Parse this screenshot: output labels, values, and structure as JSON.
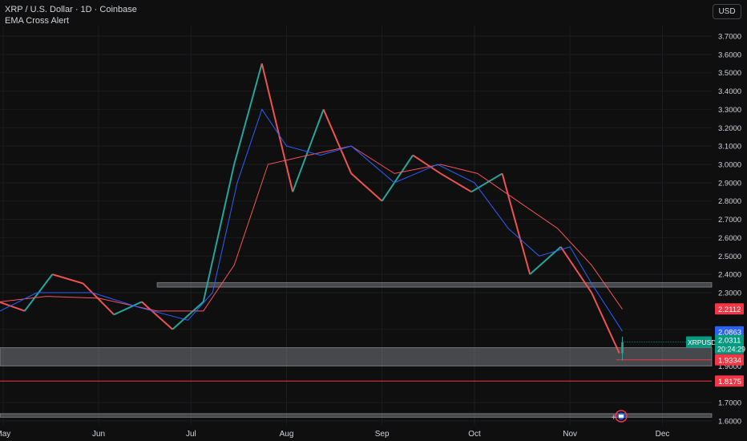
{
  "header": {
    "title": "XRP / U.S. Dollar · 1D · Coinbase",
    "indicator": "EMA Cross Alert",
    "currency": "USD"
  },
  "colors": {
    "background": "#0f0f0f",
    "up": "#26a69a",
    "down": "#ef5350",
    "ema_fast": "#2962ff",
    "ema_slow": "#f7525f",
    "zone": "#b2b5be"
  },
  "chart_data": {
    "type": "candlestick",
    "symbol": "XRPUSD",
    "ylim": [
      1.57,
      3.8
    ],
    "y_ticks": [
      "3.7000",
      "3.6000",
      "3.5000",
      "3.4000",
      "3.3000",
      "3.2000",
      "3.1000",
      "3.0000",
      "2.9000",
      "2.8000",
      "2.7000",
      "2.6000",
      "2.5000",
      "2.4000",
      "2.3000",
      "2.1000",
      "1.9000",
      "1.7000",
      "1.6000"
    ],
    "x_ticks": [
      {
        "label": "May",
        "x": "2025-05-01"
      },
      {
        "label": "Jun",
        "x": "2025-06-01"
      },
      {
        "label": "Jul",
        "x": "2025-07-01"
      },
      {
        "label": "Aug",
        "x": "2025-08-01"
      },
      {
        "label": "Sep",
        "x": "2025-09-01"
      },
      {
        "label": "Oct",
        "x": "2025-10-01"
      },
      {
        "label": "Nov",
        "x": "2025-11-01"
      },
      {
        "label": "Dec",
        "x": "2025-12-01"
      }
    ],
    "x_range": [
      "2025-04-30",
      "2025-12-17"
    ],
    "series": [
      {
        "x0": "2025-04-28",
        "x1": "2025-05-08",
        "o": 2.26,
        "c": 2.2
      },
      {
        "x0": "2025-05-08",
        "x1": "2025-05-17",
        "o": 2.2,
        "c": 2.4
      },
      {
        "x0": "2025-05-17",
        "x1": "2025-05-27",
        "o": 2.4,
        "c": 2.35
      },
      {
        "x0": "2025-05-27",
        "x1": "2025-06-06",
        "o": 2.35,
        "c": 2.18
      },
      {
        "x0": "2025-06-06",
        "x1": "2025-06-15",
        "o": 2.18,
        "c": 2.25
      },
      {
        "x0": "2025-06-15",
        "x1": "2025-06-25",
        "o": 2.25,
        "c": 2.1
      },
      {
        "x0": "2025-06-25",
        "x1": "2025-07-05",
        "o": 2.1,
        "c": 2.25
      },
      {
        "x0": "2025-07-05",
        "x1": "2025-07-15",
        "o": 2.25,
        "c": 3.0
      },
      {
        "x0": "2025-07-15",
        "x1": "2025-07-24",
        "o": 3.0,
        "c": 3.55
      },
      {
        "x0": "2025-07-24",
        "x1": "2025-08-03",
        "o": 3.55,
        "c": 2.85
      },
      {
        "x0": "2025-08-03",
        "x1": "2025-08-13",
        "o": 2.85,
        "c": 3.3
      },
      {
        "x0": "2025-08-13",
        "x1": "2025-08-22",
        "o": 3.3,
        "c": 2.95
      },
      {
        "x0": "2025-08-22",
        "x1": "2025-09-01",
        "o": 2.95,
        "c": 2.8
      },
      {
        "x0": "2025-09-01",
        "x1": "2025-09-11",
        "o": 2.8,
        "c": 3.05
      },
      {
        "x0": "2025-09-11",
        "x1": "2025-09-20",
        "o": 3.05,
        "c": 2.95
      },
      {
        "x0": "2025-09-20",
        "x1": "2025-09-30",
        "o": 2.95,
        "c": 2.85
      },
      {
        "x0": "2025-09-30",
        "x1": "2025-10-10",
        "o": 2.85,
        "c": 2.95
      },
      {
        "x0": "2025-10-10",
        "x1": "2025-10-19",
        "o": 2.95,
        "c": 2.4
      },
      {
        "x0": "2025-10-19",
        "x1": "2025-10-29",
        "o": 2.4,
        "c": 2.55
      },
      {
        "x0": "2025-10-29",
        "x1": "2025-11-08",
        "o": 2.55,
        "c": 2.3
      },
      {
        "x0": "2025-11-08",
        "x1": "2025-11-17",
        "o": 2.3,
        "c": 1.97
      }
    ],
    "candles": [
      {
        "x": "2025-11-18",
        "o": 1.97,
        "h": 2.06,
        "l": 1.93,
        "c": 2.03
      }
    ],
    "ema_fast": [
      [
        "2025-04-30",
        2.2
      ],
      [
        "2025-05-12",
        2.3
      ],
      [
        "2025-05-30",
        2.3
      ],
      [
        "2025-06-14",
        2.22
      ],
      [
        "2025-06-30",
        2.15
      ],
      [
        "2025-07-08",
        2.3
      ],
      [
        "2025-07-16",
        2.9
      ],
      [
        "2025-07-24",
        3.3
      ],
      [
        "2025-08-01",
        3.1
      ],
      [
        "2025-08-12",
        3.05
      ],
      [
        "2025-08-22",
        3.1
      ],
      [
        "2025-09-05",
        2.9
      ],
      [
        "2025-09-19",
        3.0
      ],
      [
        "2025-10-01",
        2.9
      ],
      [
        "2025-10-12",
        2.65
      ],
      [
        "2025-10-22",
        2.5
      ],
      [
        "2025-11-01",
        2.55
      ],
      [
        "2025-11-08",
        2.35
      ],
      [
        "2025-11-18",
        2.09
      ]
    ],
    "ema_slow": [
      [
        "2025-04-30",
        2.25
      ],
      [
        "2025-05-15",
        2.28
      ],
      [
        "2025-06-01",
        2.27
      ],
      [
        "2025-06-20",
        2.2
      ],
      [
        "2025-07-05",
        2.2
      ],
      [
        "2025-07-15",
        2.45
      ],
      [
        "2025-07-26",
        3.0
      ],
      [
        "2025-08-08",
        3.05
      ],
      [
        "2025-08-22",
        3.1
      ],
      [
        "2025-09-05",
        2.95
      ],
      [
        "2025-09-20",
        3.0
      ],
      [
        "2025-10-02",
        2.95
      ],
      [
        "2025-10-15",
        2.8
      ],
      [
        "2025-10-28",
        2.65
      ],
      [
        "2025-11-08",
        2.45
      ],
      [
        "2025-11-18",
        2.21
      ]
    ],
    "zones": [
      {
        "from": "2025-06-20",
        "y_top": 2.355,
        "y_bot": 2.33
      },
      {
        "from": "2025-04-30",
        "y_top": 2.0,
        "y_bot": 1.9
      },
      {
        "from": "2025-04-30",
        "y_top": 1.64,
        "y_bot": 1.62
      }
    ],
    "hlines": [
      {
        "y": 1.9334,
        "from": "2025-11-16"
      },
      {
        "y": 1.8175,
        "from": "2025-04-30"
      }
    ],
    "price_labels": [
      {
        "text": "2.2112",
        "y": 2.2112,
        "color": "#f23645"
      },
      {
        "text": "2.0863",
        "y": 2.0863,
        "color": "#2962ff"
      },
      {
        "text": "1.9334",
        "y": 1.9334,
        "color": "#f23645"
      },
      {
        "text": "1.8175",
        "y": 1.8175,
        "color": "#f23645"
      }
    ],
    "current_price": {
      "symbol": "XRPUSD",
      "price": "2.0311",
      "countdown": "20:24:29",
      "y": 2.0311,
      "color": "#089981"
    }
  }
}
